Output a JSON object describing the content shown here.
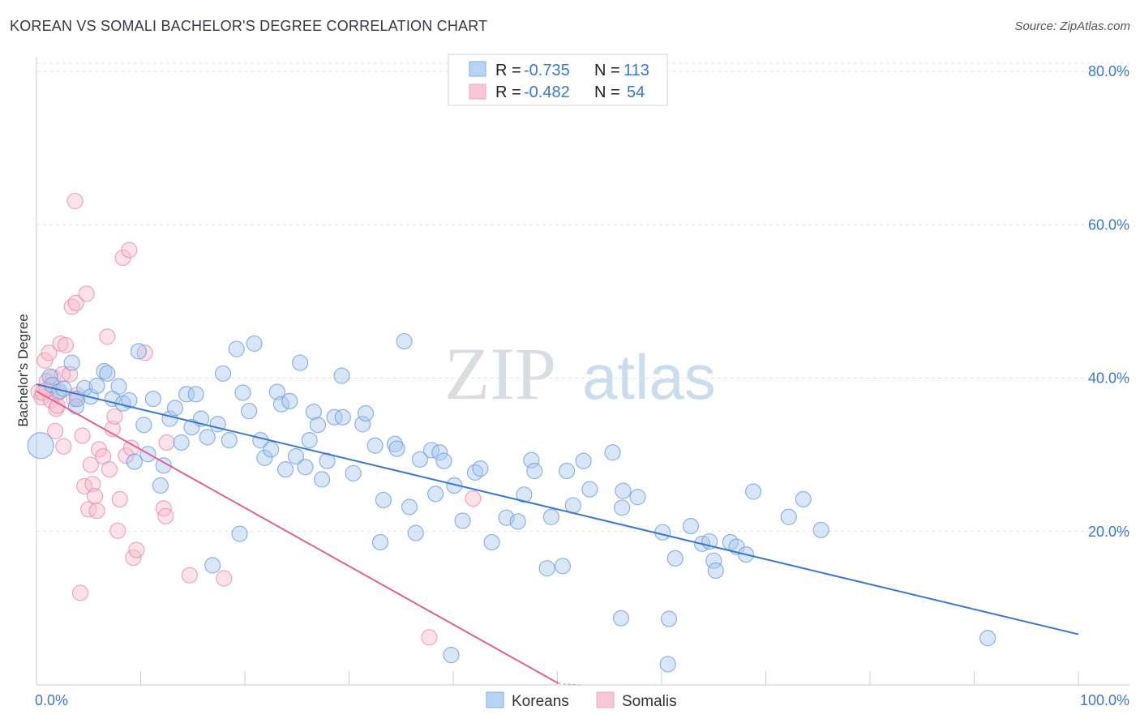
{
  "title": "KOREAN VS SOMALI BACHELOR'S DEGREE CORRELATION CHART",
  "source": "Source: ZipAtlas.com",
  "watermark": {
    "zip": "ZIP",
    "atlas": "atlas"
  },
  "legend": [
    {
      "r_label": "R = ",
      "r_value": "-0.735",
      "n_label": "N = ",
      "n_value": "113",
      "color": "#7ab0e8"
    },
    {
      "r_label": "R = ",
      "r_value": "-0.482",
      "n_label": "N = ",
      "n_value": "54",
      "color": "#f1a4bc"
    }
  ],
  "bottom_legend": [
    "Koreans",
    "Somalis"
  ],
  "colors": {
    "koreans": "#3a78c9",
    "somalis": "#e0648f",
    "korean_fill": "#a9c8f0",
    "somali_fill": "#f6bccd",
    "grid": "#dde3ea",
    "tick": "#3a78c9"
  },
  "chart_data": {
    "type": "scatter",
    "title": "KOREAN VS SOMALI BACHELOR'S DEGREE CORRELATION CHART",
    "xlabel": "",
    "ylabel": "Bachelor's Degree",
    "xlim": [
      0,
      100
    ],
    "ylim": [
      0,
      80
    ],
    "x_tick_labels": [
      "0.0%",
      "100.0%"
    ],
    "y_ticks": [
      20,
      40,
      60,
      80
    ],
    "y_tick_labels": [
      "20.0%",
      "40.0%",
      "60.0%",
      "80.0%"
    ],
    "grid": true,
    "legend_position": "top-center",
    "series": [
      {
        "name": "Koreans",
        "r": -0.735,
        "n": 113,
        "trend": {
          "x": [
            0,
            100
          ],
          "y": [
            39.2,
            6.6
          ]
        },
        "points": [
          [
            1.3,
            40.2
          ],
          [
            1.5,
            39.1
          ],
          [
            2.2,
            38.3
          ],
          [
            2.6,
            38.6
          ],
          [
            3.4,
            42.0
          ],
          [
            3.8,
            36.3
          ],
          [
            3.9,
            37.3
          ],
          [
            4.6,
            38.7
          ],
          [
            5.2,
            37.6
          ],
          [
            5.8,
            39.0
          ],
          [
            6.5,
            40.9
          ],
          [
            6.8,
            40.6
          ],
          [
            7.3,
            37.3
          ],
          [
            7.9,
            38.9
          ],
          [
            8.3,
            36.7
          ],
          [
            8.9,
            37.1
          ],
          [
            9.4,
            29.1
          ],
          [
            9.8,
            43.5
          ],
          [
            10.3,
            33.9
          ],
          [
            10.7,
            30.1
          ],
          [
            11.2,
            37.3
          ],
          [
            11.9,
            26.0
          ],
          [
            12.2,
            28.6
          ],
          [
            12.8,
            34.7
          ],
          [
            13.3,
            36.1
          ],
          [
            13.9,
            31.6
          ],
          [
            14.4,
            37.9
          ],
          [
            14.9,
            33.6
          ],
          [
            15.3,
            37.9
          ],
          [
            15.8,
            34.7
          ],
          [
            16.4,
            32.3
          ],
          [
            16.9,
            15.6
          ],
          [
            17.4,
            34.0
          ],
          [
            17.9,
            40.6
          ],
          [
            18.5,
            31.9
          ],
          [
            19.2,
            43.8
          ],
          [
            19.5,
            19.7
          ],
          [
            19.8,
            38.1
          ],
          [
            20.4,
            35.7
          ],
          [
            20.9,
            44.5
          ],
          [
            21.5,
            31.9
          ],
          [
            21.9,
            29.6
          ],
          [
            22.5,
            30.7
          ],
          [
            23.1,
            38.2
          ],
          [
            23.5,
            36.6
          ],
          [
            23.9,
            28.1
          ],
          [
            24.3,
            37.0
          ],
          [
            24.9,
            29.8
          ],
          [
            25.3,
            42.0
          ],
          [
            25.8,
            28.4
          ],
          [
            26.2,
            31.9
          ],
          [
            26.6,
            35.6
          ],
          [
            27.0,
            33.9
          ],
          [
            27.4,
            26.8
          ],
          [
            27.9,
            29.2
          ],
          [
            28.6,
            34.9
          ],
          [
            29.3,
            40.3
          ],
          [
            29.4,
            34.9
          ],
          [
            30.4,
            27.6
          ],
          [
            31.3,
            34.0
          ],
          [
            31.6,
            35.4
          ],
          [
            32.5,
            31.2
          ],
          [
            33.0,
            18.6
          ],
          [
            33.3,
            24.1
          ],
          [
            34.4,
            31.4
          ],
          [
            34.6,
            30.8
          ],
          [
            35.3,
            44.8
          ],
          [
            35.8,
            23.2
          ],
          [
            36.4,
            19.8
          ],
          [
            36.8,
            29.4
          ],
          [
            37.9,
            30.6
          ],
          [
            38.3,
            24.9
          ],
          [
            38.7,
            30.3
          ],
          [
            39.1,
            29.2
          ],
          [
            39.8,
            3.9
          ],
          [
            40.1,
            26.0
          ],
          [
            40.9,
            21.4
          ],
          [
            42.1,
            27.7
          ],
          [
            42.6,
            28.2
          ],
          [
            43.7,
            18.6
          ],
          [
            45.1,
            21.8
          ],
          [
            46.2,
            21.3
          ],
          [
            46.8,
            24.8
          ],
          [
            47.5,
            29.3
          ],
          [
            47.8,
            27.9
          ],
          [
            49.0,
            15.2
          ],
          [
            49.4,
            21.9
          ],
          [
            50.5,
            15.5
          ],
          [
            50.9,
            27.9
          ],
          [
            51.5,
            23.4
          ],
          [
            52.5,
            29.2
          ],
          [
            53.1,
            25.5
          ],
          [
            55.3,
            30.3
          ],
          [
            56.1,
            8.7
          ],
          [
            56.2,
            23.1
          ],
          [
            56.3,
            25.3
          ],
          [
            57.7,
            24.5
          ],
          [
            60.1,
            19.9
          ],
          [
            60.6,
            2.7
          ],
          [
            60.7,
            8.6
          ],
          [
            61.3,
            16.5
          ],
          [
            62.8,
            20.7
          ],
          [
            63.9,
            18.4
          ],
          [
            64.6,
            18.7
          ],
          [
            65.0,
            16.2
          ],
          [
            65.2,
            14.9
          ],
          [
            66.6,
            18.6
          ],
          [
            67.2,
            18.0
          ],
          [
            68.1,
            17.0
          ],
          [
            68.8,
            25.2
          ],
          [
            72.2,
            21.9
          ],
          [
            73.6,
            24.2
          ],
          [
            75.3,
            20.2
          ],
          [
            91.3,
            6.1
          ],
          [
            0.4,
            31.2
          ]
        ]
      },
      {
        "name": "Somalis",
        "r": -0.482,
        "n": 54,
        "trend": {
          "x": [
            0,
            50.1
          ],
          "y": [
            38.3,
            0.2
          ]
        },
        "points": [
          [
            0.2,
            38.2
          ],
          [
            0.5,
            37.5
          ],
          [
            0.8,
            42.3
          ],
          [
            1.0,
            39.6
          ],
          [
            1.2,
            43.3
          ],
          [
            1.4,
            37.1
          ],
          [
            1.6,
            40.1
          ],
          [
            1.8,
            33.1
          ],
          [
            1.9,
            36.0
          ],
          [
            2.0,
            36.4
          ],
          [
            2.1,
            38.1
          ],
          [
            2.3,
            44.5
          ],
          [
            2.5,
            40.5
          ],
          [
            2.6,
            31.1
          ],
          [
            2.8,
            44.3
          ],
          [
            3.2,
            40.5
          ],
          [
            3.4,
            49.3
          ],
          [
            3.6,
            37.3
          ],
          [
            3.7,
            63.1
          ],
          [
            3.8,
            49.8
          ],
          [
            3.9,
            37.8
          ],
          [
            4.2,
            12.0
          ],
          [
            4.4,
            32.5
          ],
          [
            4.6,
            25.9
          ],
          [
            4.8,
            51.0
          ],
          [
            5.0,
            22.9
          ],
          [
            5.2,
            28.7
          ],
          [
            5.4,
            26.2
          ],
          [
            5.6,
            24.6
          ],
          [
            5.8,
            22.7
          ],
          [
            6.0,
            30.7
          ],
          [
            6.4,
            29.8
          ],
          [
            6.8,
            45.4
          ],
          [
            7.0,
            28.1
          ],
          [
            7.3,
            33.4
          ],
          [
            7.5,
            35.0
          ],
          [
            7.8,
            20.1
          ],
          [
            8.0,
            24.2
          ],
          [
            8.3,
            55.7
          ],
          [
            8.6,
            29.9
          ],
          [
            8.9,
            56.7
          ],
          [
            9.1,
            30.9
          ],
          [
            9.3,
            16.6
          ],
          [
            9.6,
            17.6
          ],
          [
            10.4,
            43.3
          ],
          [
            12.2,
            23.0
          ],
          [
            12.4,
            22.0
          ],
          [
            12.5,
            31.6
          ],
          [
            14.7,
            14.3
          ],
          [
            18.0,
            13.9
          ],
          [
            37.7,
            6.2
          ],
          [
            41.9,
            24.3
          ],
          [
            1.0,
            38.5
          ],
          [
            0.6,
            38.1
          ]
        ]
      }
    ]
  }
}
